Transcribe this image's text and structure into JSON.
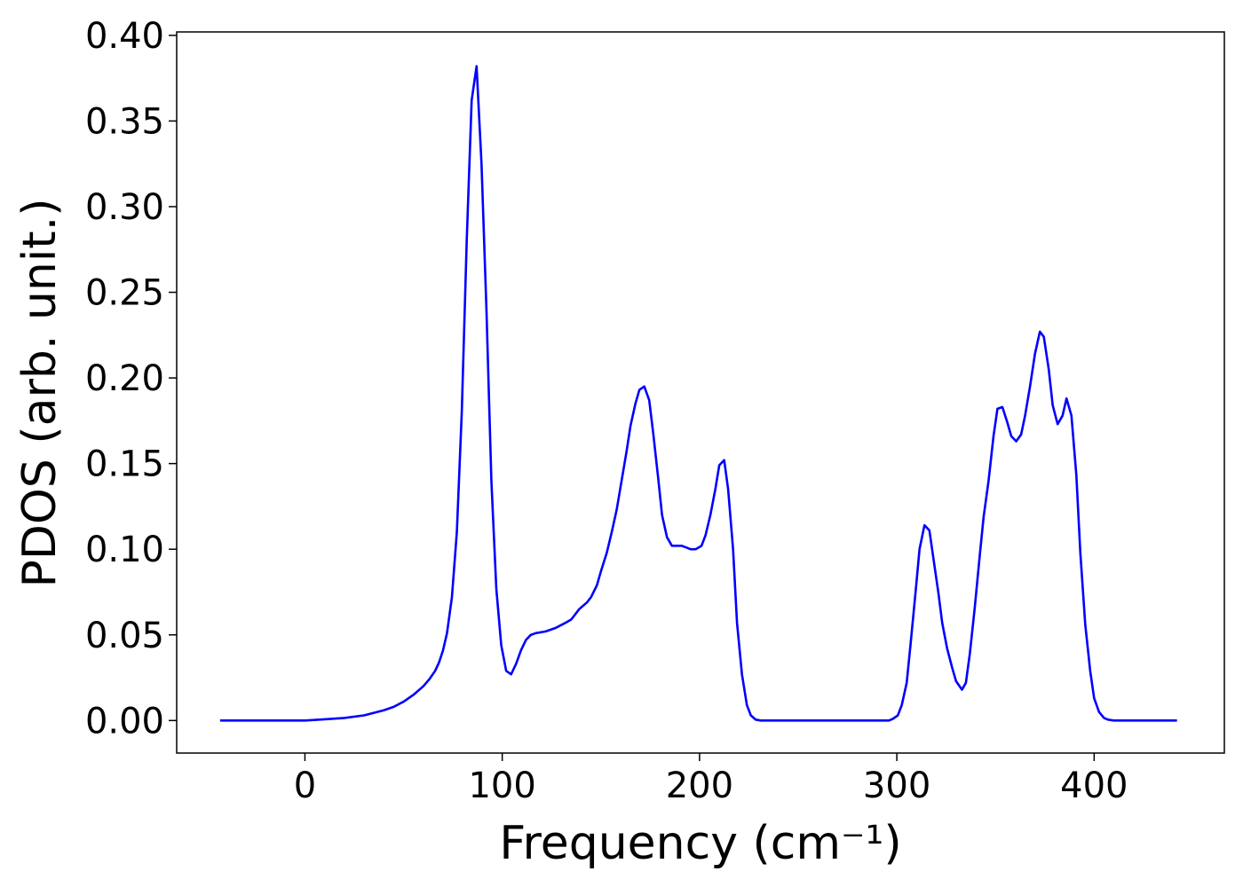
{
  "chart_data": {
    "type": "line",
    "xlabel": "Frequency (cm⁻¹)",
    "ylabel": "PDOS (arb. unit.)",
    "xlim": [
      -65,
      466
    ],
    "ylim": [
      -0.019,
      0.402
    ],
    "xticks": [
      0,
      100,
      200,
      300,
      400
    ],
    "yticks": [
      {
        "value": 0,
        "label": "0.00"
      },
      {
        "value": 0.05,
        "label": "0.05"
      },
      {
        "value": 0.1,
        "label": "0.10"
      },
      {
        "value": 0.15,
        "label": "0.15"
      },
      {
        "value": 0.2,
        "label": "0.20"
      },
      {
        "value": 0.25,
        "label": "0.25"
      },
      {
        "value": 0.3,
        "label": "0.30"
      },
      {
        "value": 0.35,
        "label": "0.35"
      },
      {
        "value": 0.4,
        "label": "0.40"
      }
    ],
    "grid": false,
    "series": [
      {
        "color": "#0000ff",
        "x": [
          -43,
          -30,
          -15,
          0,
          10,
          20,
          30,
          40,
          45,
          50,
          55,
          60,
          63,
          66,
          68,
          70,
          72,
          74.5,
          77,
          79.5,
          82,
          84.5,
          87,
          89.5,
          92,
          94.5,
          97,
          99.5,
          102,
          104.5,
          107,
          109.5,
          112,
          114.5,
          117,
          122,
          127,
          132,
          135,
          139,
          143,
          145,
          148,
          150,
          153,
          155.5,
          158,
          160.5,
          163,
          165,
          167.5,
          169.5,
          172,
          174.5,
          176.5,
          179,
          181,
          183.5,
          186,
          191,
          195.5,
          198,
          201,
          203,
          205.5,
          208,
          210,
          212.5,
          214.5,
          217,
          219,
          221.5,
          224,
          226,
          228.5,
          231,
          296,
          298,
          300.5,
          302.5,
          305,
          307,
          309.5,
          311.5,
          314,
          316.5,
          318.5,
          321,
          323,
          325.5,
          328,
          330,
          333,
          335,
          337,
          339.5,
          342,
          344,
          346.5,
          349,
          351,
          353.5,
          356,
          358,
          360.5,
          363,
          365,
          367.5,
          370,
          372.5,
          374.5,
          377,
          379,
          381.5,
          384,
          386,
          388.5,
          391,
          393,
          395.5,
          398,
          400,
          402.5,
          405,
          407,
          410,
          442
        ],
        "values": [
          0,
          0,
          0,
          0,
          0.0007,
          0.0015,
          0.003,
          0.006,
          0.008,
          0.011,
          0.015,
          0.02,
          0.024,
          0.029,
          0.034,
          0.041,
          0.051,
          0.072,
          0.11,
          0.18,
          0.28,
          0.362,
          0.382,
          0.325,
          0.24,
          0.14,
          0.077,
          0.044,
          0.029,
          0.027,
          0.033,
          0.041,
          0.047,
          0.05,
          0.051,
          0.052,
          0.054,
          0.057,
          0.059,
          0.065,
          0.069,
          0.072,
          0.079,
          0.087,
          0.098,
          0.11,
          0.123,
          0.14,
          0.157,
          0.172,
          0.185,
          0.193,
          0.195,
          0.187,
          0.168,
          0.142,
          0.12,
          0.107,
          0.102,
          0.102,
          0.1,
          0.1,
          0.102,
          0.108,
          0.12,
          0.135,
          0.149,
          0.152,
          0.135,
          0.1,
          0.057,
          0.027,
          0.009,
          0.003,
          0.0005,
          0,
          0,
          0.001,
          0.003,
          0.009,
          0.022,
          0.045,
          0.075,
          0.1,
          0.114,
          0.111,
          0.095,
          0.075,
          0.057,
          0.042,
          0.031,
          0.023,
          0.018,
          0.022,
          0.039,
          0.066,
          0.096,
          0.119,
          0.14,
          0.166,
          0.182,
          0.183,
          0.174,
          0.166,
          0.163,
          0.167,
          0.178,
          0.195,
          0.214,
          0.227,
          0.224,
          0.205,
          0.184,
          0.173,
          0.178,
          0.188,
          0.178,
          0.143,
          0.098,
          0.056,
          0.029,
          0.013,
          0.005,
          0.0015,
          0.0005,
          0,
          0
        ]
      }
    ]
  }
}
